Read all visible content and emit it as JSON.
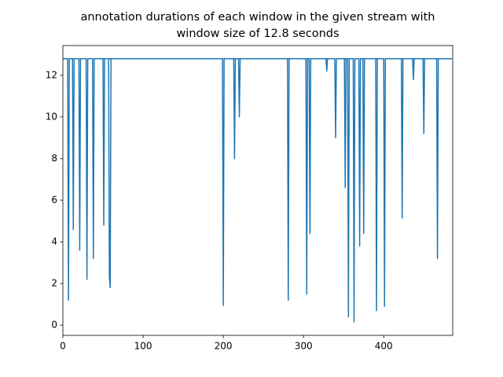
{
  "chart_data": {
    "type": "line",
    "title": [
      "annotation durations of each window in the given stream with",
      "window size of 12.8 seconds"
    ],
    "x": [
      0,
      6,
      7,
      8,
      12,
      13,
      14,
      20,
      21,
      22,
      29,
      30,
      31,
      37,
      38,
      39,
      50,
      51,
      52,
      57,
      58,
      59,
      60,
      199,
      200,
      201,
      213,
      214,
      215,
      219,
      220,
      221,
      280,
      281,
      282,
      303,
      304,
      305,
      307,
      308,
      309,
      328,
      329,
      330,
      339,
      340,
      341,
      351,
      352,
      353,
      355,
      356,
      357,
      362,
      363,
      364,
      369,
      370,
      371,
      374,
      375,
      376,
      390,
      391,
      392,
      400,
      401,
      402,
      422,
      423,
      424,
      436,
      437,
      438,
      449,
      450,
      451,
      466,
      467,
      468,
      485
    ],
    "series": [
      {
        "color": "#1f77b4",
        "values": [
          12.8,
          12.8,
          1.2,
          12.8,
          12.8,
          4.6,
          12.8,
          12.8,
          3.6,
          12.8,
          12.8,
          2.2,
          12.8,
          12.8,
          3.2,
          12.8,
          12.8,
          4.8,
          12.8,
          12.8,
          2.3,
          1.8,
          12.8,
          12.8,
          0.95,
          12.8,
          12.8,
          8.0,
          12.8,
          12.8,
          10.0,
          12.8,
          12.8,
          1.2,
          12.8,
          12.8,
          1.5,
          12.8,
          12.8,
          4.4,
          12.8,
          12.8,
          12.2,
          12.8,
          12.8,
          9.0,
          12.8,
          12.8,
          6.6,
          12.8,
          12.8,
          0.4,
          12.8,
          12.8,
          0.15,
          12.8,
          12.8,
          3.8,
          12.8,
          12.8,
          4.4,
          12.8,
          12.8,
          0.7,
          12.8,
          12.8,
          0.9,
          12.8,
          12.8,
          5.15,
          12.8,
          12.8,
          11.8,
          12.8,
          12.8,
          9.2,
          12.8,
          12.8,
          3.2,
          12.8,
          12.8
        ]
      }
    ],
    "hline": 12.8,
    "hline_color": "#1f77b4",
    "hline_dashed": true,
    "xlim": [
      0,
      486
    ],
    "ylim": [
      -0.49,
      13.43
    ],
    "xticks": [
      0,
      100,
      200,
      300,
      400
    ],
    "yticks": [
      0,
      2,
      4,
      6,
      8,
      10,
      12
    ]
  }
}
